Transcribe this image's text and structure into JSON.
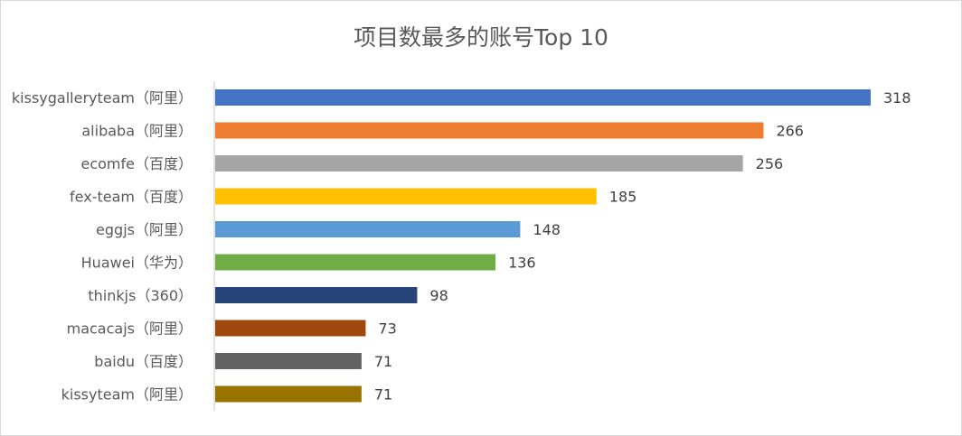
{
  "chart_data": {
    "type": "bar",
    "orientation": "horizontal",
    "title": "项目数最多的账号Top 10",
    "categories": [
      "kissygalleryteam（阿里）",
      "alibaba（阿里）",
      "ecomfe（百度）",
      "fex-team（百度）",
      "eggjs（阿里）",
      "Huawei（华为）",
      "thinkjs（360）",
      "macacajs（阿里）",
      "baidu（百度）",
      "kissyteam（阿里）"
    ],
    "values": [
      318,
      266,
      256,
      185,
      148,
      136,
      98,
      73,
      71,
      71
    ],
    "colors": [
      "#4472C4",
      "#ED7D31",
      "#A5A5A5",
      "#FFC000",
      "#5B9BD5",
      "#70AD47",
      "#264478",
      "#9E480E",
      "#636363",
      "#997300"
    ],
    "data_labels": true,
    "grid": false,
    "legend": false
  }
}
